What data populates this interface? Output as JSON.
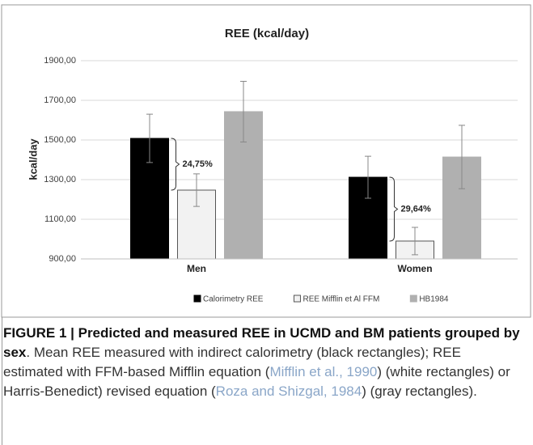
{
  "chart_data": {
    "type": "bar",
    "title": "REE (kcal/day)",
    "y_label": "kcal/day",
    "categories": [
      "Men",
      "Women"
    ],
    "series": [
      {
        "name": "Calorimetry REE",
        "color": "#000000",
        "values": [
          1508,
          1312
        ],
        "errors": [
          122,
          106
        ]
      },
      {
        "name": "REE Mifflin et Al FFM",
        "color": "#f2f2f2",
        "values": [
          1247,
          990
        ],
        "errors": [
          82,
          69
        ]
      },
      {
        "name": "HB1984",
        "color": "#b0b0b0",
        "values": [
          1643,
          1414
        ],
        "errors": [
          153,
          160
        ]
      }
    ],
    "annotations": [
      "24,75%",
      "29,64%"
    ],
    "ylim": [
      900,
      1900
    ],
    "yticks": [
      {
        "value": 900,
        "label": "900,00"
      },
      {
        "value": 1100,
        "label": "1100,00"
      },
      {
        "value": 1300,
        "label": "1300,00"
      },
      {
        "value": 1500,
        "label": "1500,00"
      },
      {
        "value": 1700,
        "label": "1700,00"
      },
      {
        "value": 1900,
        "label": "1900,00"
      }
    ],
    "grid": true
  },
  "caption": {
    "bold": "FIGURE 1 | Predicted and measured REE in UCMD and BM patients grouped by sex",
    "segments": [
      ". Mean REE measured with indirect calorimetry (black rectangles); REE estimated with FFM-based Mifflin equation (",
      "Mifflin et al., 1990",
      ") (white rectangles) or Harris-Benedict) revised equation (",
      "Roza and Shizgal, 1984",
      ") (gray rectangles)."
    ]
  }
}
